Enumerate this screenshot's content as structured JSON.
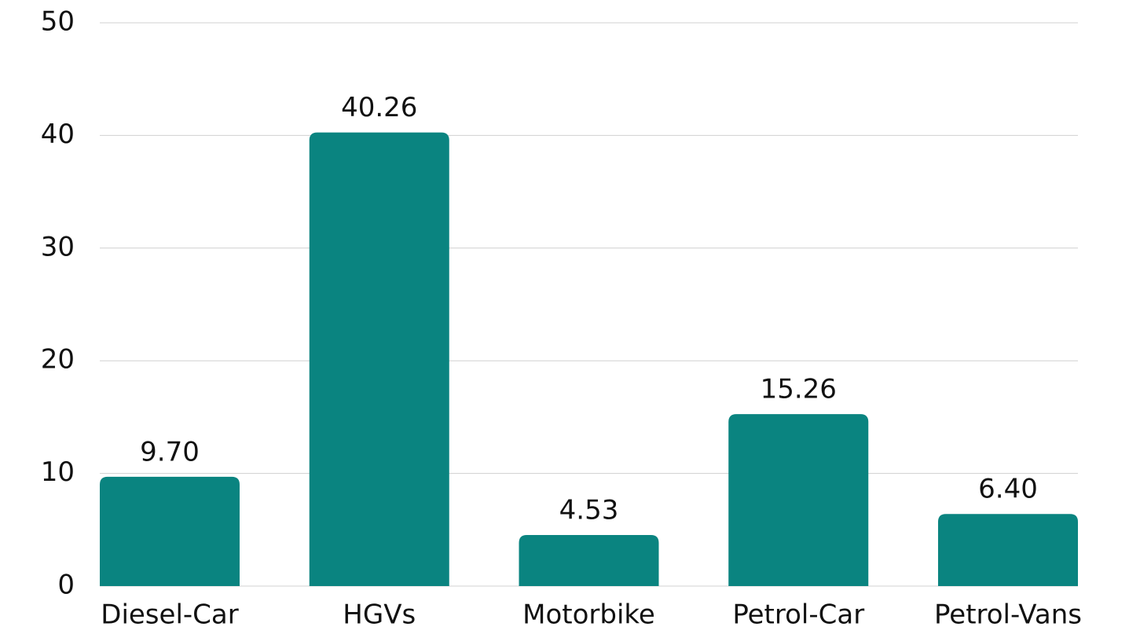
{
  "chart_data": {
    "type": "bar",
    "categories": [
      "Diesel-Car",
      "HGVs",
      "Motorbike",
      "Petrol-Car",
      "Petrol-Vans"
    ],
    "values": [
      9.7,
      40.26,
      4.53,
      15.26,
      6.4
    ],
    "value_labels": [
      "9.70",
      "40.26",
      "4.53",
      "15.26",
      "6.40"
    ],
    "color": "#0a8480",
    "ylim": [
      0,
      50
    ],
    "yticks": [
      0,
      10,
      20,
      30,
      40,
      50
    ],
    "grid": true
  }
}
